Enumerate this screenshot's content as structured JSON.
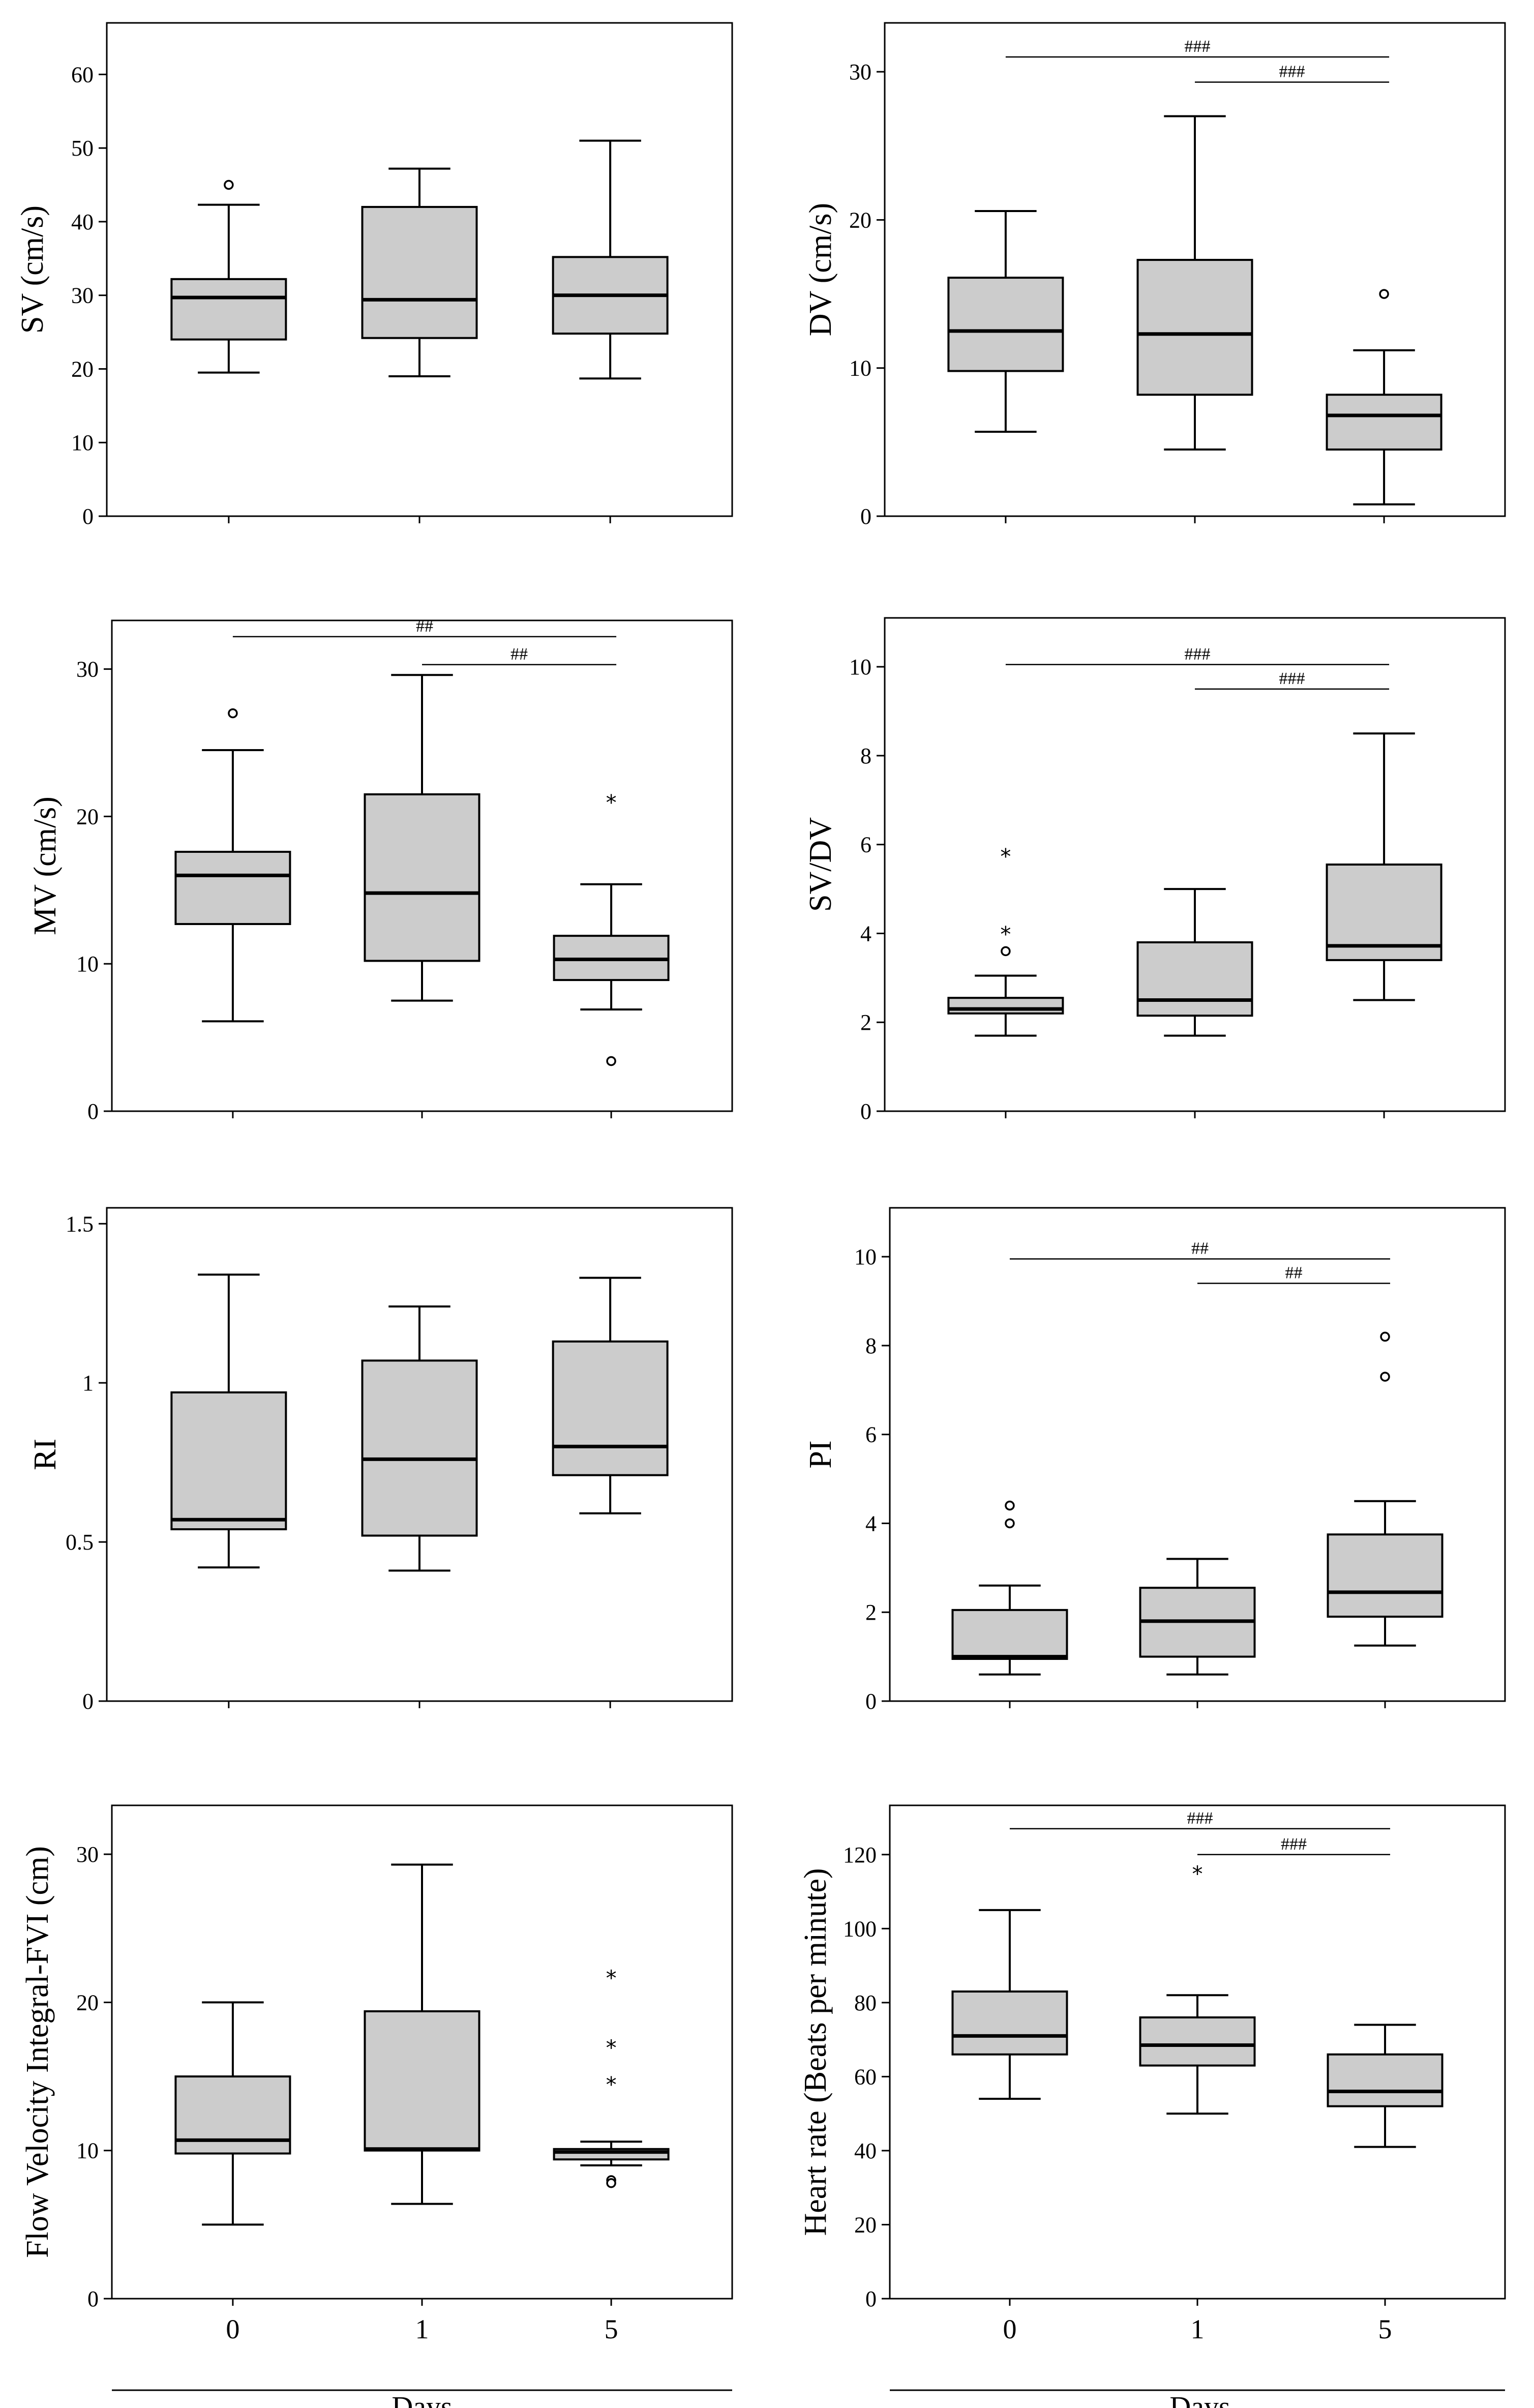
{
  "chart_data": [
    {
      "id": "sv",
      "type": "boxplot",
      "ylabel": "SV (cm/s)",
      "yticks": [
        0,
        10,
        20,
        30,
        40,
        50,
        60
      ],
      "ylim": [
        0,
        67
      ],
      "categories": [
        "0",
        "1",
        "5"
      ],
      "boxes": [
        {
          "group": "0",
          "min": 19.5,
          "q1": 24,
          "median": 29.7,
          "q3": 32.2,
          "max": 42.3,
          "outliers": [
            {
              "value": 45,
              "marker": "circle"
            }
          ]
        },
        {
          "group": "1",
          "min": 19,
          "q1": 24.2,
          "median": 29.4,
          "q3": 42,
          "max": 47.2,
          "outliers": []
        },
        {
          "group": "5",
          "min": 18.7,
          "q1": 24.8,
          "median": 30,
          "q3": 35.2,
          "max": 51,
          "outliers": []
        }
      ],
      "significance": []
    },
    {
      "id": "dv",
      "type": "boxplot",
      "ylabel": "DV (cm/s)",
      "yticks": [
        0,
        10,
        20,
        30
      ],
      "ylim": [
        0,
        33.3
      ],
      "categories": [
        "0",
        "1",
        "5"
      ],
      "boxes": [
        {
          "group": "0",
          "min": 5.7,
          "q1": 9.8,
          "median": 12.5,
          "q3": 16.1,
          "max": 20.6,
          "outliers": []
        },
        {
          "group": "1",
          "min": 4.5,
          "q1": 8.2,
          "median": 12.3,
          "q3": 17.3,
          "max": 27,
          "outliers": []
        },
        {
          "group": "5",
          "min": 0.8,
          "q1": 4.5,
          "median": 6.8,
          "q3": 8.2,
          "max": 11.2,
          "outliers": [
            {
              "value": 15,
              "marker": "circle"
            }
          ]
        }
      ],
      "significance": [
        {
          "from": "0",
          "to": "5",
          "label": "###",
          "y": 31
        },
        {
          "from": "1",
          "to": "5",
          "label": "###",
          "y": 29.3
        }
      ]
    },
    {
      "id": "mv",
      "type": "boxplot",
      "ylabel": "MV (cm/s)",
      "yticks": [
        0,
        10,
        20,
        30
      ],
      "ylim": [
        0,
        33.3
      ],
      "categories": [
        "0",
        "1",
        "5"
      ],
      "boxes": [
        {
          "group": "0",
          "min": 6.1,
          "q1": 12.7,
          "median": 16,
          "q3": 17.6,
          "max": 24.5,
          "outliers": [
            {
              "value": 27,
              "marker": "circle"
            }
          ]
        },
        {
          "group": "1",
          "min": 7.5,
          "q1": 10.2,
          "median": 14.8,
          "q3": 21.5,
          "max": 29.6,
          "outliers": []
        },
        {
          "group": "5",
          "min": 6.9,
          "q1": 8.9,
          "median": 10.3,
          "q3": 11.9,
          "max": 15.4,
          "outliers": [
            {
              "value": 21,
              "marker": "star"
            },
            {
              "value": 3.4,
              "marker": "circle"
            }
          ]
        }
      ],
      "significance": [
        {
          "from": "0",
          "to": "5",
          "label": "##",
          "y": 32.2
        },
        {
          "from": "1",
          "to": "5",
          "label": "##",
          "y": 30.3
        }
      ]
    },
    {
      "id": "svdv",
      "type": "boxplot",
      "ylabel": "SV/DV",
      "yticks": [
        0,
        2,
        4,
        6,
        8,
        10
      ],
      "ylim": [
        0,
        11.1
      ],
      "categories": [
        "0",
        "1",
        "5"
      ],
      "boxes": [
        {
          "group": "0",
          "min": 1.7,
          "q1": 2.2,
          "median": 2.3,
          "q3": 2.55,
          "max": 3.05,
          "outliers": [
            {
              "value": 5.75,
              "marker": "star"
            },
            {
              "value": 4,
              "marker": "star"
            },
            {
              "value": 3.6,
              "marker": "circle"
            }
          ]
        },
        {
          "group": "1",
          "min": 1.7,
          "q1": 2.15,
          "median": 2.5,
          "q3": 3.8,
          "max": 5,
          "outliers": []
        },
        {
          "group": "5",
          "min": 2.5,
          "q1": 3.4,
          "median": 3.72,
          "q3": 5.55,
          "max": 8.5,
          "outliers": []
        }
      ],
      "significance": [
        {
          "from": "0",
          "to": "5",
          "label": "###",
          "y": 10.05
        },
        {
          "from": "1",
          "to": "5",
          "label": "###",
          "y": 9.5
        }
      ]
    },
    {
      "id": "ri",
      "type": "boxplot",
      "ylabel": "RI",
      "yticks": [
        0,
        0.5,
        1,
        1.5
      ],
      "yticklabels": [
        "0",
        "0.5",
        "1",
        "1.5"
      ],
      "ylim": [
        0,
        1.55
      ],
      "categories": [
        "0",
        "1",
        "5"
      ],
      "boxes": [
        {
          "group": "0",
          "min": 0.42,
          "q1": 0.54,
          "median": 0.57,
          "q3": 0.97,
          "max": 1.34,
          "outliers": []
        },
        {
          "group": "1",
          "min": 0.41,
          "q1": 0.52,
          "median": 0.76,
          "q3": 1.07,
          "max": 1.24,
          "outliers": []
        },
        {
          "group": "5",
          "min": 0.59,
          "q1": 0.71,
          "median": 0.8,
          "q3": 1.13,
          "max": 1.33,
          "outliers": []
        }
      ],
      "significance": []
    },
    {
      "id": "pi",
      "type": "boxplot",
      "ylabel": "PI",
      "yticks": [
        0,
        2,
        4,
        6,
        8,
        10
      ],
      "ylim": [
        0,
        11.1
      ],
      "categories": [
        "0",
        "1",
        "5"
      ],
      "boxes": [
        {
          "group": "0",
          "min": 0.6,
          "q1": 0.95,
          "median": 1,
          "q3": 2.05,
          "max": 2.6,
          "outliers": [
            {
              "value": 4.4,
              "marker": "circle"
            },
            {
              "value": 4,
              "marker": "circle"
            }
          ]
        },
        {
          "group": "1",
          "min": 0.6,
          "q1": 1,
          "median": 1.8,
          "q3": 2.55,
          "max": 3.2,
          "outliers": []
        },
        {
          "group": "5",
          "min": 1.25,
          "q1": 1.9,
          "median": 2.45,
          "q3": 3.75,
          "max": 4.5,
          "outliers": [
            {
              "value": 8.2,
              "marker": "circle"
            },
            {
              "value": 7.3,
              "marker": "circle"
            }
          ]
        }
      ],
      "significance": [
        {
          "from": "0",
          "to": "5",
          "label": "##",
          "y": 9.95
        },
        {
          "from": "1",
          "to": "5",
          "label": "##",
          "y": 9.4
        }
      ]
    },
    {
      "id": "fvi",
      "type": "boxplot",
      "ylabel": "Flow Velocity Integral-FVI (cm)",
      "yticks": [
        0,
        10,
        20,
        30
      ],
      "ylim": [
        0,
        33.3
      ],
      "categories": [
        "0",
        "1",
        "5"
      ],
      "boxes": [
        {
          "group": "0",
          "min": 5,
          "q1": 9.8,
          "median": 10.7,
          "q3": 15,
          "max": 20,
          "outliers": []
        },
        {
          "group": "1",
          "min": 6.4,
          "q1": 10,
          "median": 10.1,
          "q3": 19.4,
          "max": 29.3,
          "outliers": []
        },
        {
          "group": "5",
          "min": 9,
          "q1": 9.4,
          "median": 9.9,
          "q3": 10.1,
          "max": 10.6,
          "outliers": [
            {
              "value": 21.7,
              "marker": "star"
            },
            {
              "value": 17,
              "marker": "star"
            },
            {
              "value": 14.5,
              "marker": "star"
            },
            {
              "value": 8,
              "marker": "circle"
            },
            {
              "value": 7.8,
              "marker": "circle"
            }
          ]
        }
      ],
      "significance": []
    },
    {
      "id": "hr",
      "type": "boxplot",
      "ylabel": "Heart rate (Beats per minute)",
      "yticks": [
        0,
        20,
        40,
        60,
        80,
        100,
        120
      ],
      "ylim": [
        0,
        133.3
      ],
      "categories": [
        "0",
        "1",
        "5"
      ],
      "boxes": [
        {
          "group": "0",
          "min": 54,
          "q1": 66,
          "median": 71,
          "q3": 83,
          "max": 105,
          "outliers": []
        },
        {
          "group": "1",
          "min": 50,
          "q1": 63,
          "median": 68.5,
          "q3": 76,
          "max": 82,
          "outliers": [
            {
              "value": 115,
              "marker": "star"
            }
          ]
        },
        {
          "group": "5",
          "min": 41,
          "q1": 52,
          "median": 56,
          "q3": 66,
          "max": 74,
          "outliers": []
        }
      ],
      "significance": [
        {
          "from": "0",
          "to": "5",
          "label": "###",
          "y": 127
        },
        {
          "from": "1",
          "to": "5",
          "label": "###",
          "y": 120
        }
      ]
    }
  ],
  "xaxis": {
    "title": "Days",
    "categories": [
      "0",
      "1",
      "5"
    ]
  }
}
